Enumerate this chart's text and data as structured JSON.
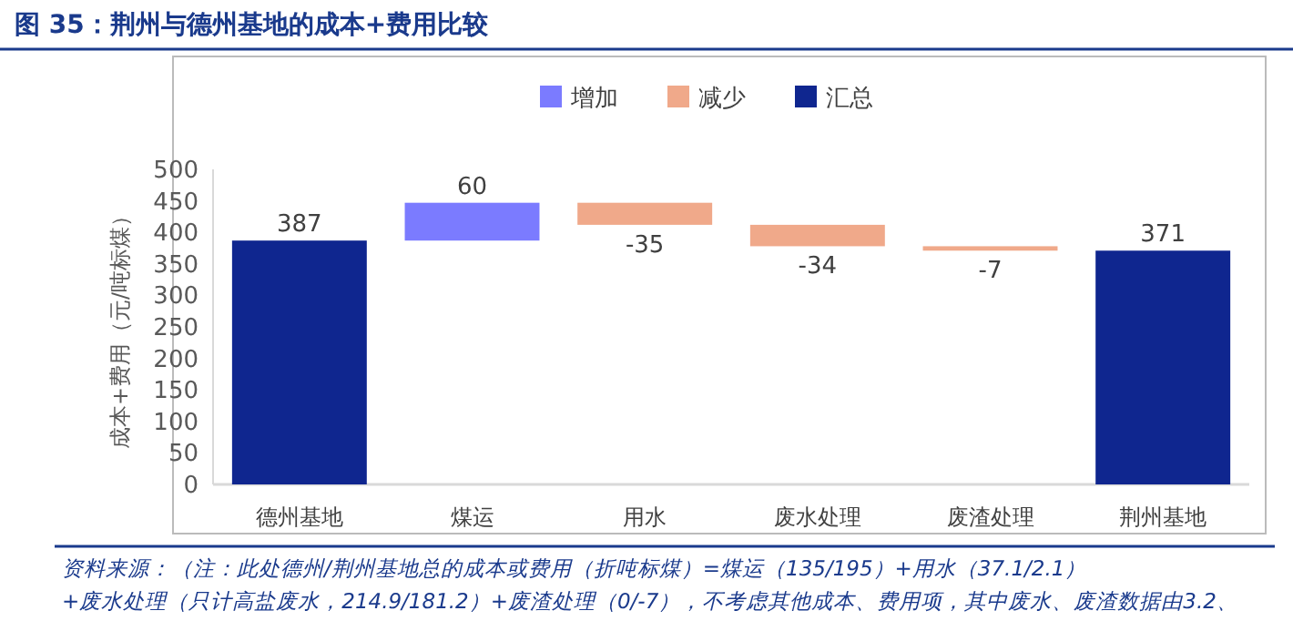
{
  "chart_data": {
    "type": "bar",
    "title": "图 35：荆州与德州基地的成本+费用比较",
    "ylabel": "成本+费用（元/吨标煤）",
    "categories": [
      "德州基地",
      "煤运",
      "用水",
      "废水处理",
      "废渣处理",
      "荆州基地"
    ],
    "series": [
      {
        "name": "增加",
        "color": "#7b7bff",
        "values": [
          null,
          60,
          null,
          null,
          null,
          null
        ],
        "base": [
          null,
          387,
          null,
          null,
          null,
          null
        ]
      },
      {
        "name": "减少",
        "color": "#f0a98a",
        "values": [
          null,
          null,
          -35,
          -34,
          -7,
          null
        ],
        "base": [
          null,
          null,
          447,
          412,
          378,
          null
        ]
      },
      {
        "name": "汇总",
        "color": "#0f268f",
        "values": [
          387,
          null,
          null,
          null,
          null,
          371
        ],
        "base": [
          0,
          null,
          null,
          null,
          null,
          0
        ]
      }
    ],
    "ylim": [
      0,
      500
    ],
    "yticks": [
      0,
      50,
      100,
      150,
      200,
      250,
      300,
      350,
      400,
      450,
      500
    ],
    "data_labels": true,
    "legend": "top",
    "annotations": [
      "资料来源：（注：此处德州/荆州基地总的成本或费用（折吨标煤）=煤运（135/195）+用水（37.1/2.1）",
      "+废水处理（只计高盐废水，214.9/181.2）+废渣处理（0/-7），不考虑其他成本、费用项，其中废水、废渣数据由3.2、"
    ]
  }
}
